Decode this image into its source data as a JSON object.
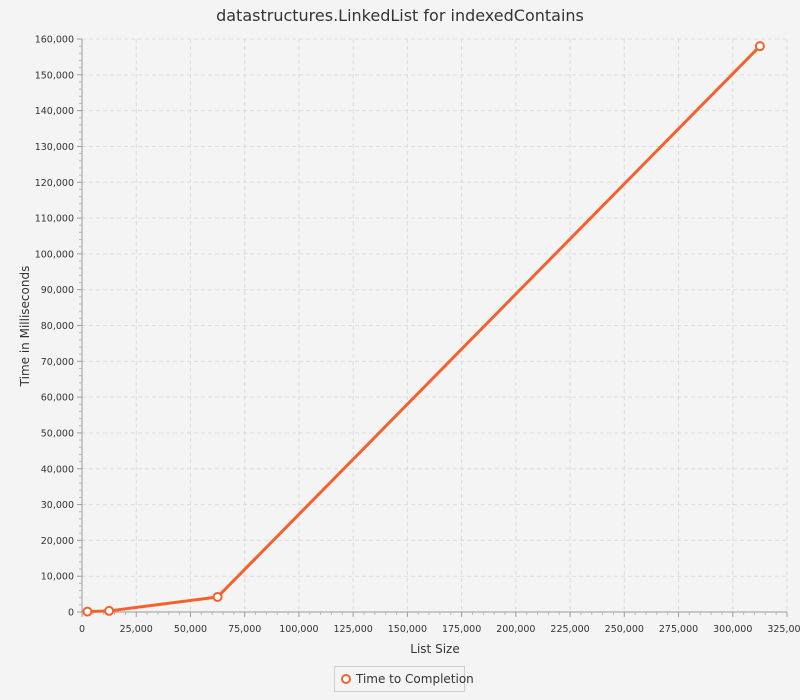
{
  "chart_data": {
    "type": "line",
    "title": "datastructures.LinkedList for indexedContains",
    "xlabel": "List Size",
    "ylabel": "Time in Milliseconds",
    "xlim": [
      0,
      325000
    ],
    "ylim": [
      0,
      160000
    ],
    "xticks": [
      "0",
      "25,000",
      "50,000",
      "75,000",
      "100,000",
      "125,000",
      "150,000",
      "175,000",
      "200,000",
      "225,000",
      "250,000",
      "275,000",
      "300,000",
      "325,000"
    ],
    "yticks": [
      "0",
      "10,000",
      "20,000",
      "30,000",
      "40,000",
      "50,000",
      "60,000",
      "70,000",
      "80,000",
      "90,000",
      "100,000",
      "110,000",
      "120,000",
      "130,000",
      "140,000",
      "150,000",
      "160,000"
    ],
    "grid": true,
    "legend_position": "bottom",
    "series": [
      {
        "name": "Time to Completion",
        "color": "#f3622d",
        "points": [
          {
            "x": 2500,
            "y": 100
          },
          {
            "x": 12500,
            "y": 300
          },
          {
            "x": 62500,
            "y": 4200
          },
          {
            "x": 312500,
            "y": 158000
          }
        ]
      }
    ]
  }
}
